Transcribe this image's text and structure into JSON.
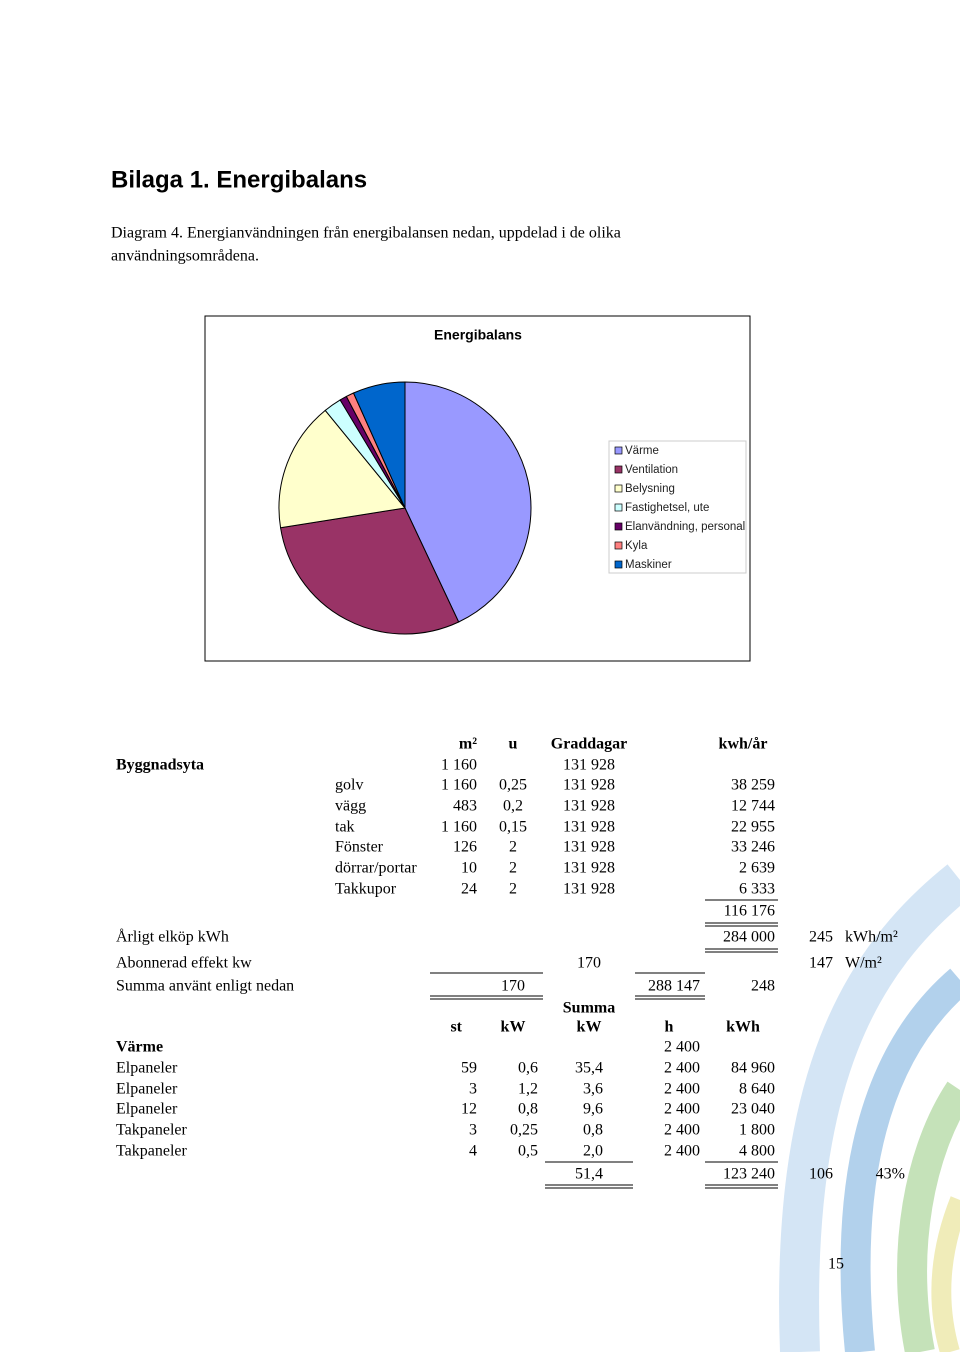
{
  "header": {
    "title": "Bilaga 1. Energibalans"
  },
  "caption": [
    "Diagram 4. Energianvändningen från energibalansen nedan, uppdelad i de olika",
    "användningsområdena."
  ],
  "chart_data": {
    "type": "pie",
    "title": "Energibalans",
    "categories": [
      "Värme",
      "Ventilation",
      "Belysning",
      "Fastighetsel, ute",
      "Elanvändning, personal",
      "Kyla",
      "Maskiner"
    ],
    "values": [
      43,
      29.5,
      16.6,
      2.3,
      0.9,
      1,
      6.7
    ],
    "colors": [
      "#9999ff",
      "#993366",
      "#ffffcc",
      "#ccffff",
      "#660066",
      "#ff8080",
      "#0066cc"
    ],
    "legend": "right"
  },
  "table": {
    "section1": [
      [
        null,
        null,
        "m²",
        "u",
        "Graddagar",
        null,
        "kwh/år",
        null,
        null
      ],
      [
        "Byggnadsyta",
        null,
        "1 160",
        null,
        "131 928",
        null,
        null,
        null,
        null
      ],
      [
        null,
        "golv",
        "1 160",
        "0,25",
        "131 928",
        null,
        "38 259",
        null,
        null
      ],
      [
        null,
        "vägg",
        "483",
        "0,2",
        "131 928",
        null,
        "12 744",
        null,
        null
      ],
      [
        null,
        "tak",
        "1 160",
        "0,15",
        "131 928",
        null,
        "22 955",
        null,
        null
      ],
      [
        null,
        "Fönster",
        "126",
        "2",
        "131 928",
        null,
        "33 246",
        null,
        null
      ],
      [
        null,
        "dörrar/portar",
        "10",
        "2",
        "131 928",
        null,
        "2 639",
        null,
        null
      ],
      [
        null,
        "Takkupor",
        "24",
        "2",
        "131 928",
        null,
        "6 333",
        null,
        null
      ],
      [
        null,
        null,
        null,
        null,
        null,
        null,
        "116 176",
        null,
        null
      ],
      [
        "Årligt elköp kWh",
        null,
        null,
        null,
        null,
        null,
        "284 000",
        "245",
        "kWh/m²"
      ],
      [
        "Abonnerad effekt kw",
        null,
        null,
        null,
        "170",
        null,
        null,
        "147",
        "W/m²"
      ],
      [
        "Summa använt enligt nedan",
        null,
        null,
        "170",
        null,
        "288 147",
        "248",
        null,
        null
      ]
    ],
    "section2": [
      [
        null,
        null,
        null,
        "Summa",
        null,
        null,
        null,
        null
      ],
      [
        null,
        "st",
        "kW",
        "kW",
        "h",
        "kWh",
        null,
        null
      ],
      [
        "Värme",
        null,
        null,
        null,
        "2 400",
        null,
        null,
        null
      ],
      [
        "Elpaneler",
        "59",
        "0,6",
        "35,4",
        "2 400",
        "84 960",
        null,
        null
      ],
      [
        "Elpaneler",
        "3",
        "1,2",
        "3,6",
        "2 400",
        "8 640",
        null,
        null
      ],
      [
        "Elpaneler",
        "12",
        "0,8",
        "9,6",
        "2 400",
        "23 040",
        null,
        null
      ],
      [
        "Takpaneler",
        "3",
        "0,25",
        "0,8",
        "2 400",
        "1 800",
        null,
        null
      ],
      [
        "Takpaneler",
        "4",
        "0,5",
        "2,0",
        "2 400",
        "4 800",
        null,
        null
      ],
      [
        null,
        null,
        null,
        "51,4",
        null,
        "123 240",
        "106",
        "43%"
      ]
    ]
  },
  "page_number": "15"
}
